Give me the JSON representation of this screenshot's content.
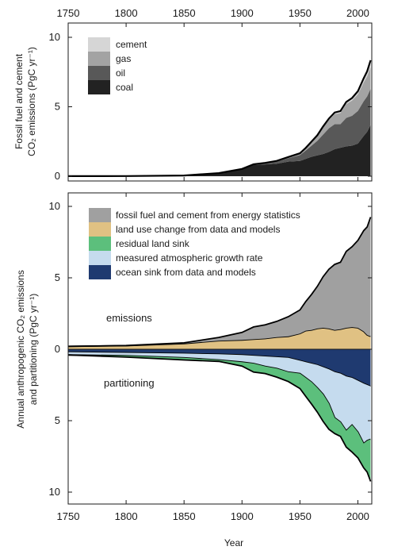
{
  "chart_data": [
    {
      "type": "area",
      "title": "",
      "ylabel_line1": "Fossil fuel and cement",
      "ylabel_line2": "CO₂ emissions (PgC yr⁻¹)",
      "xlim": [
        1750,
        2012
      ],
      "ylim": [
        0,
        10
      ],
      "grid": false,
      "legend_placement": "top-left",
      "x_ticks": [
        1750,
        1800,
        1850,
        1900,
        1950,
        2000
      ],
      "y_ticks": [
        0,
        5,
        10
      ],
      "x": [
        1750,
        1800,
        1850,
        1880,
        1900,
        1910,
        1920,
        1930,
        1940,
        1950,
        1955,
        1960,
        1965,
        1970,
        1975,
        1980,
        1985,
        1990,
        1995,
        2000,
        2005,
        2008,
        2011
      ],
      "series": [
        {
          "name": "coal",
          "color": "#222222",
          "values": [
            0.003,
            0.01,
            0.05,
            0.22,
            0.5,
            0.8,
            0.85,
            0.9,
            1.05,
            1.1,
            1.25,
            1.4,
            1.5,
            1.6,
            1.75,
            1.95,
            2.05,
            2.15,
            2.2,
            2.35,
            2.9,
            3.2,
            3.7
          ]
        },
        {
          "name": "oil",
          "color": "#585858",
          "values": [
            0,
            0,
            0,
            0.005,
            0.02,
            0.04,
            0.08,
            0.15,
            0.25,
            0.42,
            0.6,
            0.8,
            1.05,
            1.4,
            1.7,
            1.8,
            1.7,
            2.05,
            2.15,
            2.35,
            2.5,
            2.55,
            2.6
          ]
        },
        {
          "name": "gas",
          "color": "#a3a3a3",
          "values": [
            0,
            0,
            0,
            0,
            0.003,
            0.01,
            0.02,
            0.04,
            0.06,
            0.1,
            0.15,
            0.24,
            0.33,
            0.5,
            0.6,
            0.72,
            0.8,
            1.0,
            1.1,
            1.2,
            1.35,
            1.45,
            1.6
          ]
        },
        {
          "name": "cement",
          "color": "#d6d6d6",
          "values": [
            0,
            0,
            0,
            0,
            0.005,
            0.008,
            0.01,
            0.015,
            0.02,
            0.03,
            0.04,
            0.05,
            0.07,
            0.08,
            0.1,
            0.12,
            0.14,
            0.15,
            0.18,
            0.22,
            0.3,
            0.36,
            0.45
          ]
        }
      ]
    },
    {
      "type": "area",
      "title": "",
      "ylabel_line1": "Annual anthropogenic CO₂ emissions",
      "ylabel_line2": "and partitioning (PgC yr⁻¹)",
      "xlabel": "Year",
      "xlim": [
        1750,
        2012
      ],
      "ylim": [
        -10.5,
        11
      ],
      "y_ticks": [
        10,
        5,
        0,
        -5,
        -10
      ],
      "y_tick_labels": [
        "10",
        "5",
        "0",
        "5",
        "10"
      ],
      "x_ticks": [
        1750,
        1800,
        1850,
        1900,
        1950,
        2000
      ],
      "grid": false,
      "legend_placement": "top-left",
      "annotations": [
        "emissions",
        "partitioning"
      ],
      "x": [
        1750,
        1800,
        1850,
        1880,
        1900,
        1910,
        1920,
        1930,
        1940,
        1950,
        1955,
        1960,
        1965,
        1970,
        1975,
        1980,
        1985,
        1990,
        1995,
        2000,
        2005,
        2008,
        2011
      ],
      "emissions": [
        {
          "name": "land use change from data and models",
          "color": "#e0c183",
          "values": [
            0.2,
            0.25,
            0.4,
            0.6,
            0.65,
            0.7,
            0.75,
            0.85,
            0.9,
            1.1,
            1.3,
            1.35,
            1.45,
            1.5,
            1.45,
            1.35,
            1.4,
            1.5,
            1.55,
            1.5,
            1.25,
            1.0,
            0.9
          ]
        },
        {
          "name": "fossil fuel and cement from energy statistics",
          "color": "#a0a0a0",
          "values": [
            0.003,
            0.01,
            0.05,
            0.225,
            0.53,
            0.86,
            0.96,
            1.1,
            1.38,
            1.65,
            2.04,
            2.49,
            2.95,
            3.58,
            4.15,
            4.59,
            4.69,
            5.35,
            5.63,
            6.12,
            7.05,
            7.56,
            8.35
          ]
        }
      ],
      "partitioning": [
        {
          "name": "ocean sink from data and models",
          "color": "#1f3a70",
          "values": [
            -0.2,
            -0.25,
            -0.3,
            -0.35,
            -0.4,
            -0.45,
            -0.5,
            -0.55,
            -0.6,
            -0.8,
            -0.9,
            -1.0,
            -1.1,
            -1.25,
            -1.4,
            -1.6,
            -1.7,
            -1.9,
            -2.0,
            -2.2,
            -2.4,
            -2.5,
            -2.6
          ]
        },
        {
          "name": "measured atmospheric growth rate",
          "color": "#c5dbee",
          "values": [
            -0.2,
            -0.2,
            -0.3,
            -0.4,
            -0.5,
            -0.55,
            -0.7,
            -0.8,
            -1.0,
            -0.9,
            -1.1,
            -1.3,
            -1.6,
            -1.9,
            -2.4,
            -3.2,
            -3.4,
            -3.8,
            -3.3,
            -3.6,
            -4.2,
            -3.9,
            -3.7
          ]
        },
        {
          "name": "residual land sink",
          "color": "#5cbf7c",
          "values": [
            0.0,
            -0.1,
            -0.15,
            -0.1,
            -0.28,
            -0.6,
            -0.5,
            -0.6,
            -0.66,
            -1.05,
            -1.3,
            -1.54,
            -1.7,
            -1.9,
            -1.8,
            -1.1,
            -1.0,
            -1.15,
            -1.9,
            -1.8,
            -1.7,
            -2.2,
            -2.95
          ]
        }
      ],
      "emissions_total": [
        0.203,
        0.26,
        0.45,
        0.825,
        1.18,
        1.56,
        1.71,
        1.95,
        2.28,
        2.75,
        3.34,
        3.84,
        4.4,
        5.08,
        5.6,
        5.94,
        6.09,
        6.85,
        7.18,
        7.62,
        8.3,
        8.56,
        9.25
      ]
    }
  ],
  "legend_top": [
    {
      "label": "cement",
      "color": "#d6d6d6"
    },
    {
      "label": "gas",
      "color": "#a3a3a3"
    },
    {
      "label": "oil",
      "color": "#585858"
    },
    {
      "label": "coal",
      "color": "#222222"
    }
  ],
  "legend_bottom": [
    {
      "label": "fossil fuel and cement from energy statistics",
      "color": "#a0a0a0"
    },
    {
      "label": "land use change from data and models",
      "color": "#e0c183"
    },
    {
      "label": "residual land sink",
      "color": "#5cbf7c"
    },
    {
      "label": "measured atmospheric growth rate",
      "color": "#c5dbee"
    },
    {
      "label": "ocean sink from data and models",
      "color": "#1f3a70"
    }
  ]
}
